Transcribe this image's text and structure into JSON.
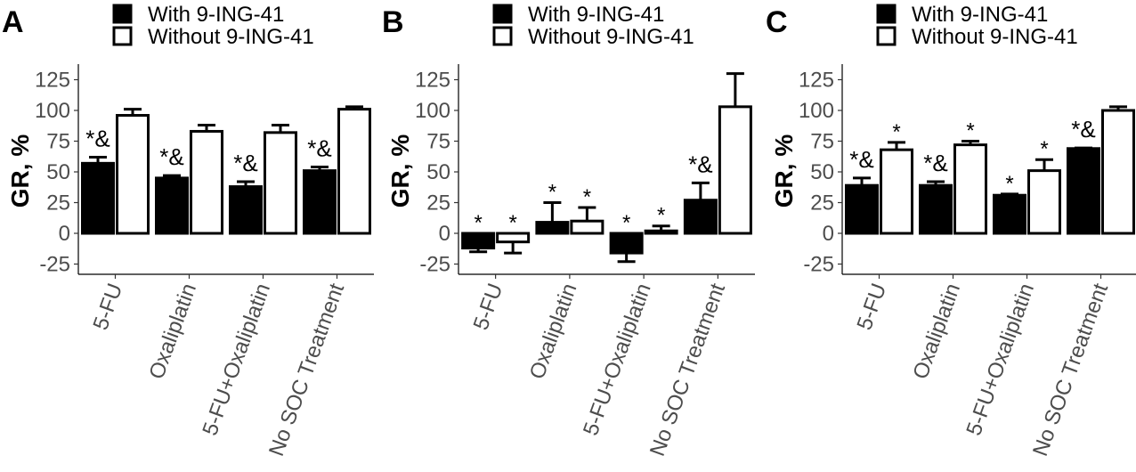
{
  "chart_data": [
    {
      "type": "bar",
      "panel_label": "A",
      "ylabel": "GR, %",
      "ylim": [
        -32,
        138
      ],
      "yticks": [
        -25,
        0,
        25,
        50,
        75,
        100,
        125
      ],
      "categories": [
        "5-FU",
        "Oxaliplatin",
        "5-FU+Oxaliplatin",
        "No SOC Treatment"
      ],
      "series": [
        {
          "name": "With 9-ING-41",
          "color": "#000000",
          "values": [
            57,
            45,
            38,
            51
          ],
          "errors": [
            5,
            2,
            4,
            3
          ],
          "annotations": [
            "*&",
            "*&",
            "*&",
            "*&"
          ]
        },
        {
          "name": "Without 9-ING-41",
          "color": "#ffffff",
          "values": [
            96,
            83,
            82,
            101
          ],
          "errors": [
            5,
            5,
            6,
            2
          ],
          "annotations": [
            "",
            "",
            "",
            ""
          ]
        }
      ],
      "legend": [
        "With 9-ING-41",
        "Without 9-ING-41"
      ]
    },
    {
      "type": "bar",
      "panel_label": "B",
      "ylabel": "GR, %",
      "ylim": [
        -32,
        138
      ],
      "yticks": [
        -25,
        0,
        25,
        50,
        75,
        100,
        125
      ],
      "categories": [
        "5-FU",
        "Oxaliplatin",
        "5-FU+Oxaliplatin",
        "No SOC Treatment"
      ],
      "series": [
        {
          "name": "With 9-ING-41",
          "color": "#000000",
          "values": [
            -12,
            9,
            -16,
            27
          ],
          "errors": [
            3,
            16,
            7,
            14
          ],
          "annotations": [
            "*",
            "*",
            "*",
            "*&"
          ]
        },
        {
          "name": "Without 9-ING-41",
          "color": "#ffffff",
          "values": [
            -7,
            10,
            2,
            103
          ],
          "errors": [
            9,
            11,
            4,
            27
          ],
          "annotations": [
            "*",
            "*",
            "*",
            ""
          ]
        }
      ],
      "legend": [
        "With 9-ING-41",
        "Without 9-ING-41"
      ]
    },
    {
      "type": "bar",
      "panel_label": "C",
      "ylabel": "GR, %",
      "ylim": [
        -32,
        138
      ],
      "yticks": [
        -25,
        0,
        25,
        50,
        75,
        100,
        125
      ],
      "categories": [
        "5-FU",
        "Oxaliplatin",
        "5-FU+Oxaliplatin",
        "No SOC Treatment"
      ],
      "series": [
        {
          "name": "With 9-ING-41",
          "color": "#000000",
          "values": [
            39,
            39,
            31,
            69
          ],
          "errors": [
            6,
            3,
            1,
            0.5
          ],
          "annotations": [
            "*&",
            "*&",
            "*",
            "*&"
          ]
        },
        {
          "name": "Without 9-ING-41",
          "color": "#ffffff",
          "values": [
            68,
            72,
            51,
            100
          ],
          "errors": [
            6,
            3,
            9,
            3
          ],
          "annotations": [
            "*",
            "*",
            "*",
            ""
          ]
        }
      ],
      "legend": [
        "With 9-ING-41",
        "Without 9-ING-41"
      ]
    }
  ]
}
